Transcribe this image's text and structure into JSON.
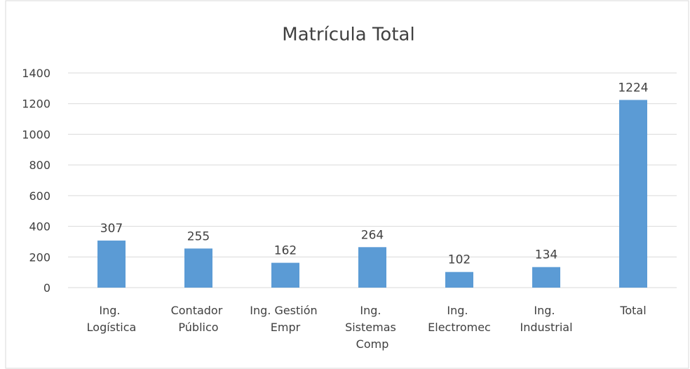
{
  "chart_data": {
    "type": "bar",
    "title": "Matrícula Total",
    "categories": [
      "Ing. Logística",
      "Contador Público",
      "Ing. Gestión Empr",
      "Ing. Sistemas Comp",
      "Ing. Electromec",
      "Ing. Industrial",
      "Total"
    ],
    "values": [
      307,
      255,
      162,
      264,
      102,
      134,
      1224
    ],
    "color": "#5b9bd5",
    "ylim": [
      0,
      1400
    ],
    "yticks": [
      0,
      200,
      400,
      600,
      800,
      1000,
      1200,
      1400
    ],
    "grid": true
  }
}
